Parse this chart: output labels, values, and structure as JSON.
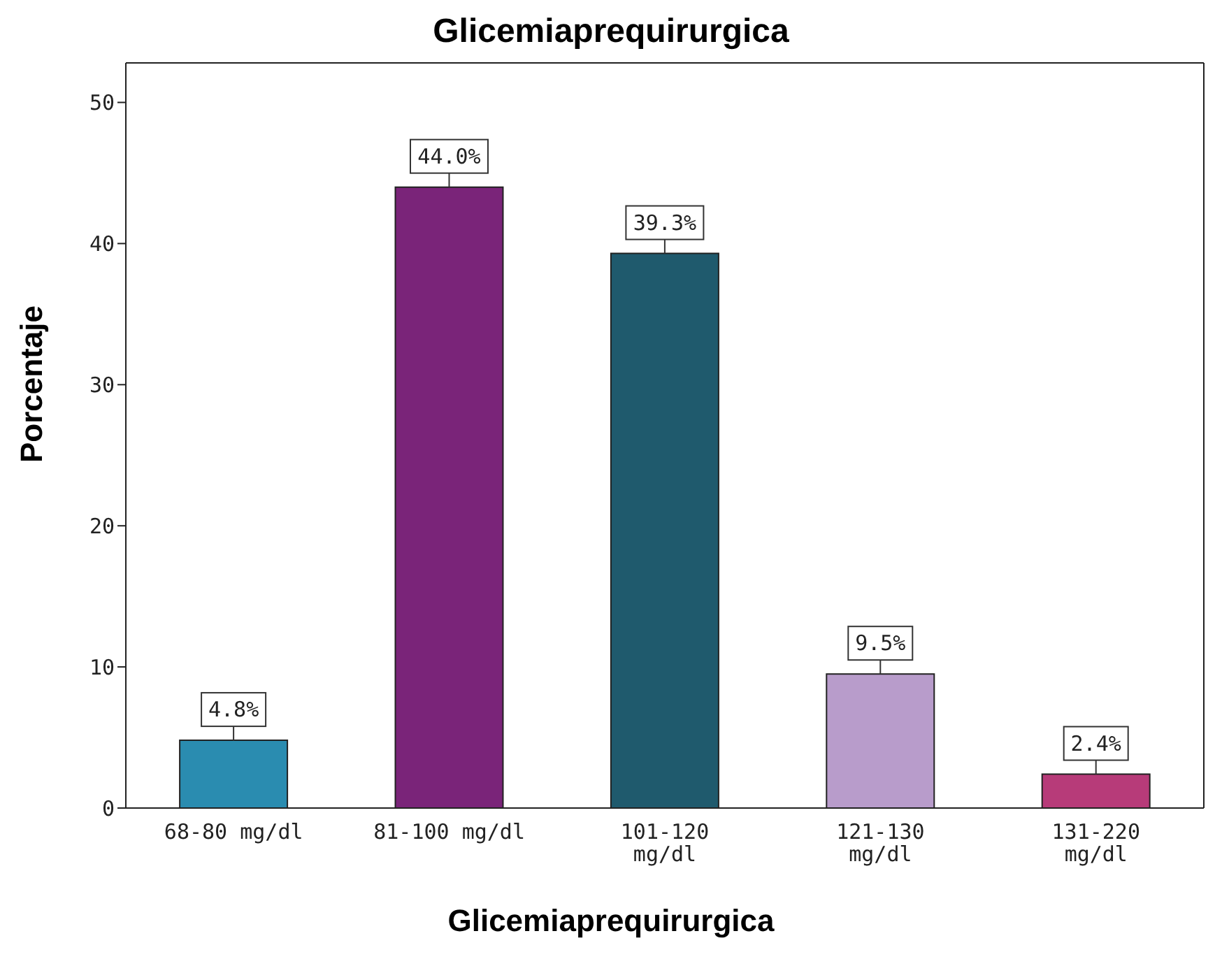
{
  "chart_data": {
    "type": "bar",
    "title": "Glicemiaprequirurgica",
    "xlabel": "Glicemiaprequirurgica",
    "ylabel": "Porcentaje",
    "categories": [
      "68-80 mg/dl",
      "81-100 mg/dl",
      "101-120 mg/dl",
      "121-130 mg/dl",
      "131-220 mg/dl"
    ],
    "values": [
      4.8,
      44.0,
      39.3,
      9.5,
      2.4
    ],
    "colors": [
      "#2a8cb0",
      "#7a2479",
      "#1f5a6d",
      "#b89ccb",
      "#b73b79"
    ],
    "value_labels": [
      "4.8%",
      "44.0%",
      "39.3%",
      "9.5%",
      "2.4%"
    ],
    "ylim": [
      0,
      52.8
    ],
    "yticks": [
      0,
      10,
      20,
      30,
      40,
      50
    ],
    "grid": false
  }
}
